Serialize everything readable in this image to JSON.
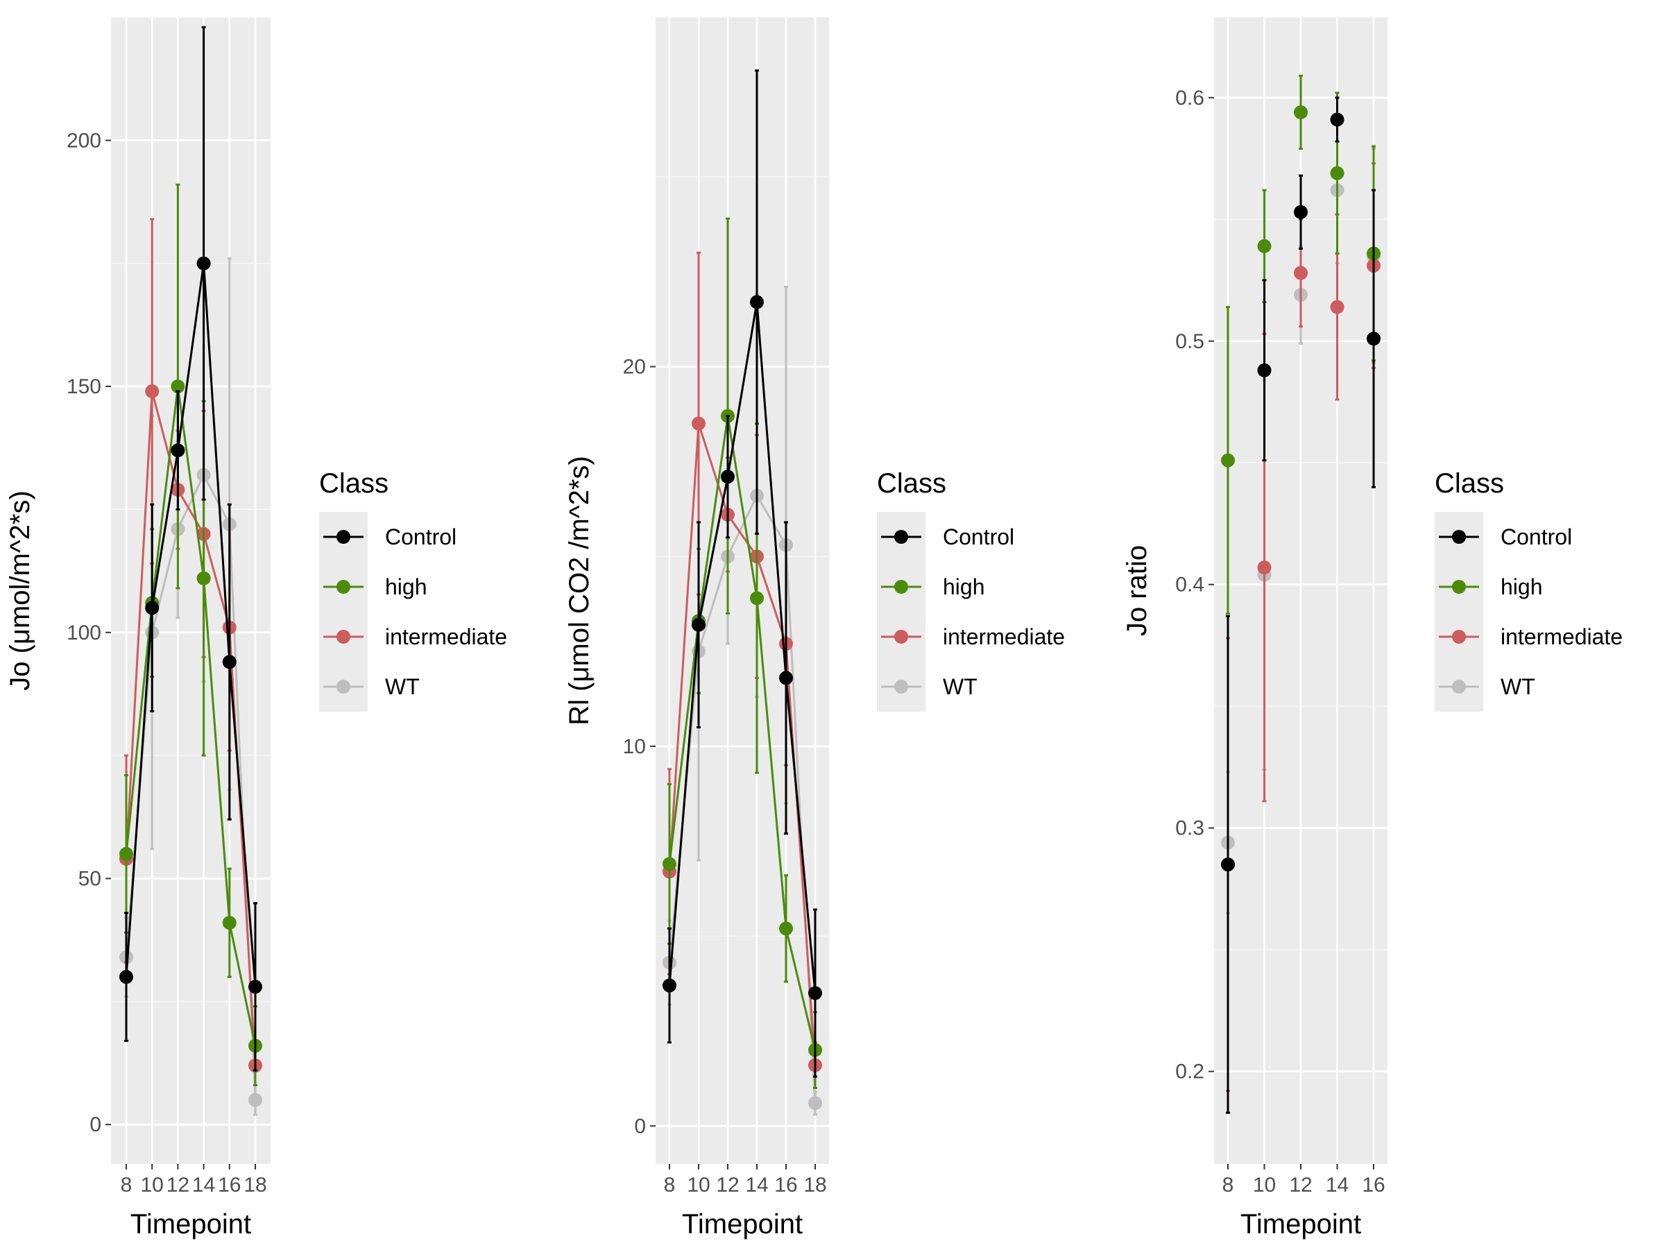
{
  "chart_data": [
    {
      "type": "line",
      "xlabel": "Timepoint",
      "ylabel": "Jo (μmol/m^2*s)",
      "x": [
        8,
        10,
        12,
        14,
        16,
        18
      ],
      "x_tick_labels": [
        "8",
        "10",
        "12",
        "14",
        "16",
        "18"
      ],
      "ylim": [
        -8,
        225
      ],
      "y_ticks": [
        0,
        50,
        100,
        150,
        200
      ],
      "grid": true,
      "series": [
        {
          "name": "Control",
          "color": "#000000",
          "values": [
            30,
            105,
            137,
            175,
            94,
            28
          ],
          "error": [
            13,
            21,
            12,
            48,
            32,
            17
          ]
        },
        {
          "name": "high",
          "color": "#4a8c0a",
          "values": [
            55,
            106,
            150,
            111,
            41,
            16
          ],
          "error": [
            16,
            15,
            41,
            36,
            11,
            8
          ]
        },
        {
          "name": "intermediate",
          "color": "#cd5c5c",
          "values": [
            54,
            149,
            129,
            120,
            101,
            12
          ],
          "error": [
            21,
            35,
            12,
            25,
            25,
            4
          ]
        },
        {
          "name": "WT",
          "color": "#bebebe",
          "values": [
            34,
            100,
            121,
            132,
            122,
            5
          ],
          "error": [
            8,
            44,
            18,
            42,
            54,
            3
          ]
        }
      ],
      "legend": {
        "title": "Class",
        "position": "right"
      }
    },
    {
      "type": "line",
      "xlabel": "Timepoint",
      "ylabel": "Rl (μmol CO2 /m^2*s)",
      "x": [
        8,
        10,
        12,
        14,
        16,
        18
      ],
      "x_tick_labels": [
        "8",
        "10",
        "12",
        "14",
        "16",
        "18"
      ],
      "ylim": [
        -1,
        29.2
      ],
      "y_ticks": [
        0,
        10,
        20
      ],
      "grid": true,
      "series": [
        {
          "name": "Control",
          "color": "#000000",
          "values": [
            3.7,
            13.2,
            17.1,
            21.7,
            11.8,
            3.5
          ],
          "error": [
            1.5,
            2.7,
            1.6,
            6.1,
            4.1,
            2.2
          ]
        },
        {
          "name": "high",
          "color": "#4a8c0a",
          "values": [
            6.9,
            13.3,
            18.7,
            13.9,
            5.2,
            2.0
          ],
          "error": [
            2.1,
            1.9,
            5.2,
            4.6,
            1.4,
            1.0
          ]
        },
        {
          "name": "intermediate",
          "color": "#cd5c5c",
          "values": [
            6.7,
            18.5,
            16.1,
            15.0,
            12.7,
            1.6
          ],
          "error": [
            2.7,
            4.5,
            1.5,
            3.2,
            3.2,
            0.6
          ]
        },
        {
          "name": "WT",
          "color": "#bebebe",
          "values": [
            4.3,
            12.5,
            15.0,
            16.6,
            15.3,
            0.6
          ],
          "error": [
            1.1,
            5.5,
            2.3,
            5.3,
            6.8,
            0.3
          ]
        }
      ],
      "legend": {
        "title": "Class",
        "position": "right"
      }
    },
    {
      "type": "line",
      "xlabel": "Timepoint",
      "ylabel": "Jo ratio",
      "x": [
        8,
        10,
        12,
        14,
        16
      ],
      "x_tick_labels": [
        "8",
        "10",
        "12",
        "14",
        "16"
      ],
      "ylim": [
        0.162,
        0.633
      ],
      "y_ticks": [
        0.2,
        0.3,
        0.4,
        0.5,
        0.6
      ],
      "grid": true,
      "show_lines": false,
      "series": [
        {
          "name": "Control",
          "color": "#000000",
          "values": [
            0.285,
            0.488,
            0.553,
            0.591,
            0.501
          ],
          "error": [
            0.102,
            0.037,
            0.015,
            0.009,
            0.061
          ]
        },
        {
          "name": "high",
          "color": "#4a8c0a",
          "values": [
            0.451,
            0.539,
            0.594,
            0.569,
            0.536
          ],
          "error": [
            0.063,
            0.023,
            0.015,
            0.033,
            0.044
          ]
        },
        {
          "name": "intermediate",
          "color": "#cd5c5c",
          "values": [
            0.285,
            0.407,
            0.528,
            0.514,
            0.531
          ],
          "error": [
            0.093,
            0.096,
            0.022,
            0.038,
            0.042
          ]
        },
        {
          "name": "WT",
          "color": "#bebebe",
          "values": [
            0.294,
            0.404,
            0.519,
            0.562,
            0.535
          ],
          "error": [
            0.029,
            0.08,
            0.02,
            0.03,
            0.044
          ]
        }
      ],
      "legend": {
        "title": "Class",
        "position": "right"
      }
    }
  ]
}
